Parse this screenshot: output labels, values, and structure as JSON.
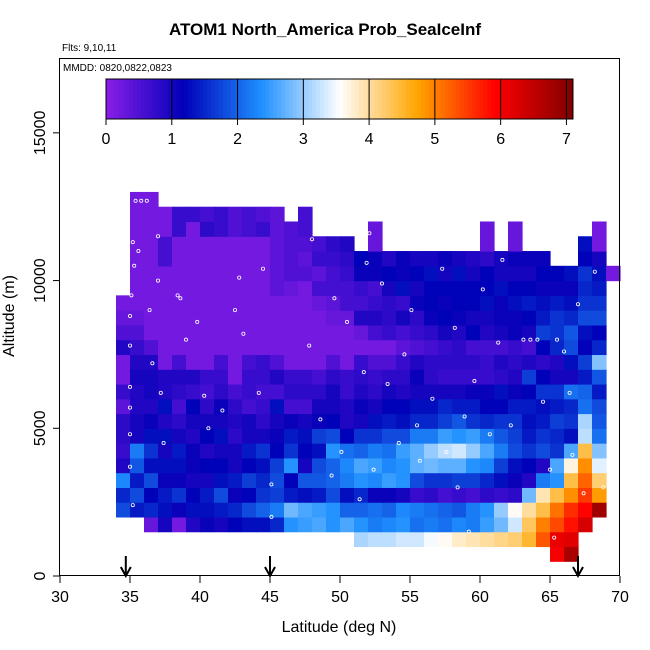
{
  "chart_data": {
    "type": "heatmap",
    "title": "ATOM1 North_America Prob_SeaIceInf",
    "notes": [
      "Flts: 9,10,11",
      "MMDD: 0820,0822,0823"
    ],
    "xlabel": "Latitude (deg N)",
    "ylabel": "Altitude (m)",
    "xlim": [
      30,
      70
    ],
    "ylim": [
      0,
      17500
    ],
    "xticks": [
      30,
      35,
      40,
      45,
      50,
      55,
      60,
      65,
      70
    ],
    "yticks": [
      0,
      5000,
      10000,
      15000
    ],
    "colorbar": {
      "min": 0,
      "max": 7.1,
      "ticks": [
        0,
        1,
        2,
        3,
        4,
        5,
        6,
        7
      ],
      "placement": "top-inside",
      "colors": [
        "#8a1ee8",
        "#0000b8",
        "#1e90ff",
        "#ffffff",
        "#ffa500",
        "#ff0000",
        "#800000"
      ]
    },
    "arrow_markers_latitude": [
      34.7,
      45,
      67
    ],
    "cell_size": {
      "lat_deg": 1,
      "alt_m": 500
    },
    "columns": [
      {
        "lat": 34,
        "alt_min": 2000,
        "values": [
          1.8,
          1.5,
          2.3,
          0.9,
          0.7,
          0.8,
          0.8,
          0.4,
          0.7,
          0.2,
          0.2,
          0.9,
          0.5,
          0.3,
          0.2
        ]
      },
      {
        "lat": 35,
        "alt_min": 2000,
        "values": [
          1.4,
          1.8,
          1.4,
          1.9,
          2.2,
          1.0,
          1.0,
          0.9,
          0.9,
          1.0,
          0.9,
          0.7,
          0.5,
          0.3,
          0.2,
          0.2,
          0.2,
          0.2,
          0.2,
          0.2,
          0.2,
          0.2
        ]
      },
      {
        "lat": 36,
        "alt_min": 1500,
        "values": [
          0.3,
          1.5,
          1.2,
          1.8,
          1.3,
          1.6,
          1.3,
          1.1,
          0.9,
          1.0,
          1.0,
          0.9,
          0.5,
          0.2,
          0.2,
          0.2,
          0.2,
          0.2,
          0.2,
          0.2,
          0.2,
          0.2,
          0.2
        ]
      },
      {
        "lat": 37,
        "alt_min": 1500,
        "values": [
          1.0,
          1.3,
          1.4,
          1.1,
          1.3,
          1.0,
          1.3,
          0.9,
          1.3,
          0.9,
          0.9,
          0.2,
          0.2,
          0.2,
          0.2,
          0.2,
          0.2,
          0.2,
          0.6,
          0.6,
          0.2,
          0.2
        ]
      },
      {
        "lat": 38,
        "alt_min": 1500,
        "values": [
          0.2,
          1.1,
          1.6,
          1.1,
          1.3,
          1.4,
          1.0,
          0.8,
          0.6,
          0.8,
          0.9,
          0.6,
          0.2,
          0.2,
          0.2,
          0.2,
          0.2,
          0.2,
          0.2,
          0.2,
          0.7,
          0.7
        ]
      },
      {
        "lat": 39,
        "alt_min": 1500,
        "values": [
          0.9,
          1.3,
          1.2,
          1.0,
          1.1,
          1.1,
          0.9,
          1.0,
          1.2,
          0.7,
          0.9,
          0.2,
          0.2,
          0.2,
          0.2,
          0.2,
          0.2,
          0.2,
          0.2,
          0.2,
          0.2,
          0.7
        ]
      },
      {
        "lat": 40,
        "alt_min": 1500,
        "values": [
          1.1,
          1.3,
          1.4,
          1.0,
          1.2,
          0.9,
          1.2,
          1.0,
          0.8,
          0.6,
          0.7,
          0.2,
          0.2,
          0.2,
          0.2,
          0.2,
          0.2,
          0.2,
          0.2,
          0.2,
          0.8,
          0.6
        ]
      },
      {
        "lat": 41,
        "alt_min": 1500,
        "values": [
          1.0,
          1.4,
          1.8,
          1.3,
          1.2,
          1.0,
          1.3,
          1.0,
          1.1,
          0.8,
          0.7,
          0.6,
          0.2,
          0.2,
          0.2,
          0.2,
          0.2,
          0.2,
          0.2,
          0.2,
          0.7,
          0.7
        ]
      },
      {
        "lat": 42,
        "alt_min": 1500,
        "values": [
          1.2,
          1.5,
          1.1,
          1.4,
          1.0,
          1.0,
          0.8,
          0.9,
          0.8,
          0.6,
          0.2,
          0.2,
          0.2,
          0.2,
          0.2,
          0.2,
          0.2,
          0.2,
          0.2,
          0.2,
          0.5,
          0.5
        ]
      },
      {
        "lat": 43,
        "alt_min": 1500,
        "values": [
          1.3,
          1.8,
          1.2,
          1.7,
          1.2,
          1.4,
          1.0,
          1.0,
          0.6,
          0.7,
          0.7,
          0.6,
          0.2,
          0.2,
          0.2,
          0.2,
          0.2,
          0.2,
          0.2,
          0.2,
          0.6,
          0.6
        ]
      },
      {
        "lat": 44,
        "alt_min": 1500,
        "values": [
          1.3,
          2.0,
          1.6,
          1.5,
          1.3,
          1.6,
          1.0,
          0.8,
          0.7,
          0.6,
          0.7,
          0.7,
          0.2,
          0.2,
          0.2,
          0.2,
          0.2,
          0.2,
          0.2,
          0.2,
          0.7,
          0.5
        ]
      },
      {
        "lat": 45,
        "alt_min": 1500,
        "values": [
          1.5,
          2.2,
          1.7,
          1.8,
          1.7,
          1.2,
          1.1,
          1.0,
          1.3,
          0.6,
          0.9,
          0.5,
          0.2,
          0.2,
          0.2,
          0.2,
          0.4,
          0.4,
          0.4,
          0.4,
          0.4,
          0.4
        ]
      },
      {
        "lat": 46,
        "alt_min": 1500,
        "values": [
          2.4,
          2.8,
          1.4,
          1.2,
          2.4,
          1.6,
          1.4,
          1.1,
          0.6,
          0.8,
          0.7,
          0.2,
          0.2,
          0.2,
          0.2,
          0.2,
          0.3,
          0.5,
          0.5,
          0.5,
          0.5
        ]
      },
      {
        "lat": 47,
        "alt_min": 1500,
        "values": [
          2.5,
          2.6,
          1.3,
          1.9,
          1.0,
          1.2,
          1.3,
          1.0,
          0.6,
          0.8,
          0.7,
          0.2,
          0.2,
          0.2,
          0.2,
          0.2,
          0.2,
          0.5,
          0.4,
          0.5,
          0.6,
          0.6
        ]
      },
      {
        "lat": 48,
        "alt_min": 1500,
        "values": [
          2.6,
          2.5,
          1.4,
          1.9,
          1.8,
          1.3,
          1.7,
          1.1,
          1.0,
          0.8,
          0.6,
          0.2,
          0.2,
          0.2,
          0.2,
          0.3,
          0.6,
          0.4,
          0.7,
          0.6
        ]
      },
      {
        "lat": 49,
        "alt_min": 1500,
        "values": [
          2.4,
          2.4,
          1.8,
          2.0,
          2.0,
          2.4,
          1.8,
          1.2,
          1.0,
          1.0,
          0.8,
          0.5,
          0.2,
          0.2,
          0.3,
          0.4,
          0.6,
          0.6,
          0.7,
          0.8
        ]
      },
      {
        "lat": 50,
        "alt_min": 1500,
        "values": [
          2.6,
          2.0,
          1.3,
          2.2,
          2.3,
          2.1,
          1.2,
          0.9,
          0.9,
          0.7,
          0.7,
          0.2,
          0.2,
          0.2,
          0.3,
          0.6,
          0.6,
          0.7,
          0.8,
          0.9
        ]
      },
      {
        "lat": 51,
        "alt_min": 1000,
        "values": [
          3.1,
          2.4,
          2.0,
          1.5,
          2.4,
          2.6,
          2.0,
          1.6,
          1.0,
          1.1,
          0.9,
          0.8,
          0.7,
          0.2,
          0.3,
          0.9,
          0.6,
          0.7,
          1.1,
          1.2
        ]
      },
      {
        "lat": 52,
        "alt_min": 1000,
        "values": [
          3.2,
          2.2,
          2.1,
          1.1,
          2.3,
          2.5,
          2.2,
          1.6,
          1.3,
          1.0,
          0.8,
          0.7,
          0.5,
          0.2,
          0.6,
          0.9,
          0.7,
          0.6,
          1.1,
          1.1,
          0.3,
          0.3
        ]
      },
      {
        "lat": 53,
        "alt_min": 1000,
        "values": [
          3.2,
          2.3,
          2.0,
          1.1,
          2.5,
          2.3,
          2.1,
          1.8,
          1.4,
          1.2,
          1.0,
          0.8,
          0.5,
          0.2,
          0.7,
          0.8,
          0.8,
          1.0,
          1.2,
          0.9
        ]
      },
      {
        "lat": 54,
        "alt_min": 1000,
        "values": [
          3.3,
          2.4,
          2.3,
          1.0,
          2.4,
          2.4,
          2.5,
          1.8,
          1.3,
          1.2,
          0.9,
          0.8,
          0.7,
          0.4,
          0.6,
          1.0,
          0.7,
          1.3,
          1.1,
          1.1
        ]
      },
      {
        "lat": 55,
        "alt_min": 1000,
        "values": [
          3.3,
          2.1,
          2.2,
          0.7,
          1.8,
          2.7,
          2.7,
          2.2,
          1.5,
          1.3,
          1.0,
          1.1,
          0.9,
          0.5,
          0.7,
          0.8,
          1.1,
          1.0,
          1.2,
          1.0
        ]
      },
      {
        "lat": 56,
        "alt_min": 1000,
        "values": [
          3.5,
          2.2,
          2.1,
          0.8,
          1.6,
          2.8,
          3.0,
          2.2,
          1.5,
          1.3,
          1.0,
          0.8,
          0.8,
          0.6,
          0.8,
          1.1,
          1.2,
          1.2,
          1.3,
          1.0
        ]
      },
      {
        "lat": 57,
        "alt_min": 1000,
        "values": [
          3.6,
          2.1,
          2.0,
          0.6,
          1.6,
          2.7,
          3.2,
          2.5,
          1.7,
          1.5,
          1.0,
          0.7,
          0.8,
          0.7,
          1.0,
          1.2,
          1.1,
          1.2,
          1.0,
          1.1
        ]
      },
      {
        "lat": 58,
        "alt_min": 1000,
        "values": [
          3.8,
          2.3,
          1.9,
          0.7,
          1.7,
          2.7,
          3.3,
          2.4,
          1.9,
          1.4,
          1.0,
          0.7,
          0.8,
          0.8,
          0.9,
          1.1,
          1.2,
          1.2,
          1.3,
          1.0
        ]
      },
      {
        "lat": 59,
        "alt_min": 1000,
        "values": [
          3.9,
          2.2,
          2.2,
          0.6,
          1.7,
          2.4,
          3.0,
          2.5,
          1.6,
          1.4,
          1.1,
          0.7,
          0.8,
          0.6,
          1.2,
          1.0,
          1.2,
          1.2,
          1.0,
          0.9
        ]
      },
      {
        "lat": 60,
        "alt_min": 1000,
        "values": [
          4.0,
          2.5,
          2.4,
          0.8,
          1.5,
          2.3,
          2.6,
          2.2,
          1.5,
          1.2,
          1.1,
          0.7,
          0.7,
          0.6,
          0.9,
          1.0,
          1.3,
          1.2,
          1.2,
          0.8,
          0.3,
          0.3
        ]
      },
      {
        "lat": 61,
        "alt_min": 1000,
        "values": [
          4.1,
          2.8,
          3.0,
          0.7,
          1.3,
          1.7,
          2.2,
          1.9,
          1.6,
          1.2,
          1.3,
          0.8,
          0.9,
          0.6,
          1.0,
          1.1,
          1.1,
          1.3,
          1.0,
          1.0
        ]
      },
      {
        "lat": 62,
        "alt_min": 1000,
        "values": [
          4.2,
          3.3,
          3.6,
          0.8,
          1.1,
          1.3,
          1.8,
          1.7,
          1.6,
          1.4,
          1.1,
          0.9,
          0.8,
          0.7,
          1.1,
          1.1,
          1.3,
          1.2,
          1.0,
          1.1,
          0.3,
          0.3
        ]
      },
      {
        "lat": 63,
        "alt_min": 1000,
        "values": [
          4.5,
          4.3,
          4.0,
          2.8,
          0.9,
          1.2,
          1.6,
          1.4,
          1.3,
          1.4,
          1.2,
          1.7,
          0.9,
          0.6,
          1.0,
          1.2,
          1.4,
          1.2,
          1.0,
          1.1
        ]
      },
      {
        "lat": 64,
        "alt_min": 1000,
        "values": [
          5.3,
          5.0,
          4.4,
          3.9,
          2.2,
          0.9,
          1.8,
          1.6,
          1.4,
          1.3,
          1.6,
          1.2,
          0.8,
          1.2,
          1.7,
          1.4,
          1.3,
          1.1,
          1.2,
          1.1
        ]
      },
      {
        "lat": 65,
        "alt_min": 500,
        "values": [
          6.0,
          6.1,
          5.4,
          5.1,
          4.4,
          2.4,
          2.6,
          1.6,
          1.5,
          1.7,
          1.4,
          1.6,
          1.0,
          0.9,
          1.5,
          1.6,
          1.6,
          1.4,
          1.1,
          1.2
        ]
      },
      {
        "lat": 66,
        "alt_min": 500,
        "values": [
          6.7,
          6.2,
          5.8,
          5.6,
          4.9,
          4.4,
          3.7,
          2.6,
          1.3,
          1.6,
          1.5,
          2.1,
          1.0,
          1.3,
          1.8,
          1.9,
          1.5,
          1.3,
          1.1,
          1.3
        ]
      },
      {
        "lat": 67,
        "alt_min": 1500,
        "values": [
          6.3,
          5.9,
          5.5,
          5.2,
          4.9,
          4.4,
          3.2,
          3.1,
          2.1,
          2.0,
          1.4,
          1.7,
          1.2,
          1.3,
          1.8,
          1.6,
          1.5,
          1.6,
          1.2,
          1.3
        ]
      },
      {
        "lat": 68,
        "alt_min": 2000,
        "values": [
          6.8,
          4.8,
          4.2,
          3.4,
          2.9,
          2.1,
          1.9,
          1.8,
          1.4,
          1.9,
          2.9,
          1.5,
          1.2,
          1.8,
          1.6,
          1.4,
          1.3,
          1.0,
          0.2,
          0.2
        ]
      },
      {
        "lat": 69,
        "alt_min": 10000,
        "values": [
          0.2
        ]
      }
    ],
    "sample_points": [
      [
        35.4,
        12700
      ],
      [
        35.8,
        12700
      ],
      [
        36.2,
        12700
      ],
      [
        35.2,
        11300
      ],
      [
        35.6,
        11000
      ],
      [
        37.0,
        11500
      ],
      [
        35.3,
        10500
      ],
      [
        35.1,
        9500
      ],
      [
        35.0,
        8800
      ],
      [
        35.0,
        7800
      ],
      [
        35.0,
        6400
      ],
      [
        35.0,
        5700
      ],
      [
        35.0,
        4800
      ],
      [
        35.0,
        3700
      ],
      [
        35.2,
        2400
      ],
      [
        36.4,
        9000
      ],
      [
        36.6,
        7200
      ],
      [
        37.0,
        10000
      ],
      [
        37.2,
        6200
      ],
      [
        37.4,
        4500
      ],
      [
        38.4,
        9500
      ],
      [
        38.6,
        9400
      ],
      [
        39.0,
        8000
      ],
      [
        39.8,
        8600
      ],
      [
        40.3,
        6100
      ],
      [
        40.6,
        5000
      ],
      [
        41.6,
        5600
      ],
      [
        42.5,
        9000
      ],
      [
        42.8,
        10100
      ],
      [
        43.1,
        8200
      ],
      [
        44.2,
        6200
      ],
      [
        44.5,
        10400
      ],
      [
        45.1,
        3100
      ],
      [
        45.1,
        2000
      ],
      [
        47.8,
        7800
      ],
      [
        48.0,
        11400
      ],
      [
        48.6,
        5300
      ],
      [
        49.4,
        3400
      ],
      [
        49.6,
        9400
      ],
      [
        50.1,
        4200
      ],
      [
        50.5,
        8600
      ],
      [
        51.4,
        2600
      ],
      [
        51.7,
        6900
      ],
      [
        51.9,
        10600
      ],
      [
        52.1,
        11600
      ],
      [
        52.4,
        3600
      ],
      [
        53.0,
        9900
      ],
      [
        53.4,
        6500
      ],
      [
        54.2,
        4500
      ],
      [
        54.6,
        7500
      ],
      [
        55.1,
        9000
      ],
      [
        55.5,
        5100
      ],
      [
        55.7,
        3900
      ],
      [
        56.6,
        6000
      ],
      [
        57.3,
        10400
      ],
      [
        57.6,
        4200
      ],
      [
        58.2,
        8400
      ],
      [
        58.4,
        3000
      ],
      [
        58.9,
        5400
      ],
      [
        59.2,
        1500
      ],
      [
        59.6,
        6600
      ],
      [
        60.2,
        9700
      ],
      [
        60.7,
        4800
      ],
      [
        61.3,
        7900
      ],
      [
        61.6,
        10700
      ],
      [
        62.2,
        5100
      ],
      [
        62.6,
        2400
      ],
      [
        63.1,
        8000
      ],
      [
        63.6,
        8000
      ],
      [
        64.1,
        8000
      ],
      [
        64.5,
        5900
      ],
      [
        65.0,
        3600
      ],
      [
        65.3,
        1300
      ],
      [
        65.5,
        8000
      ],
      [
        66.0,
        7600
      ],
      [
        66.4,
        6200
      ],
      [
        66.6,
        4100
      ],
      [
        67.0,
        9200
      ],
      [
        67.4,
        2800
      ],
      [
        68.2,
        10300
      ],
      [
        68.8,
        3000
      ]
    ]
  }
}
